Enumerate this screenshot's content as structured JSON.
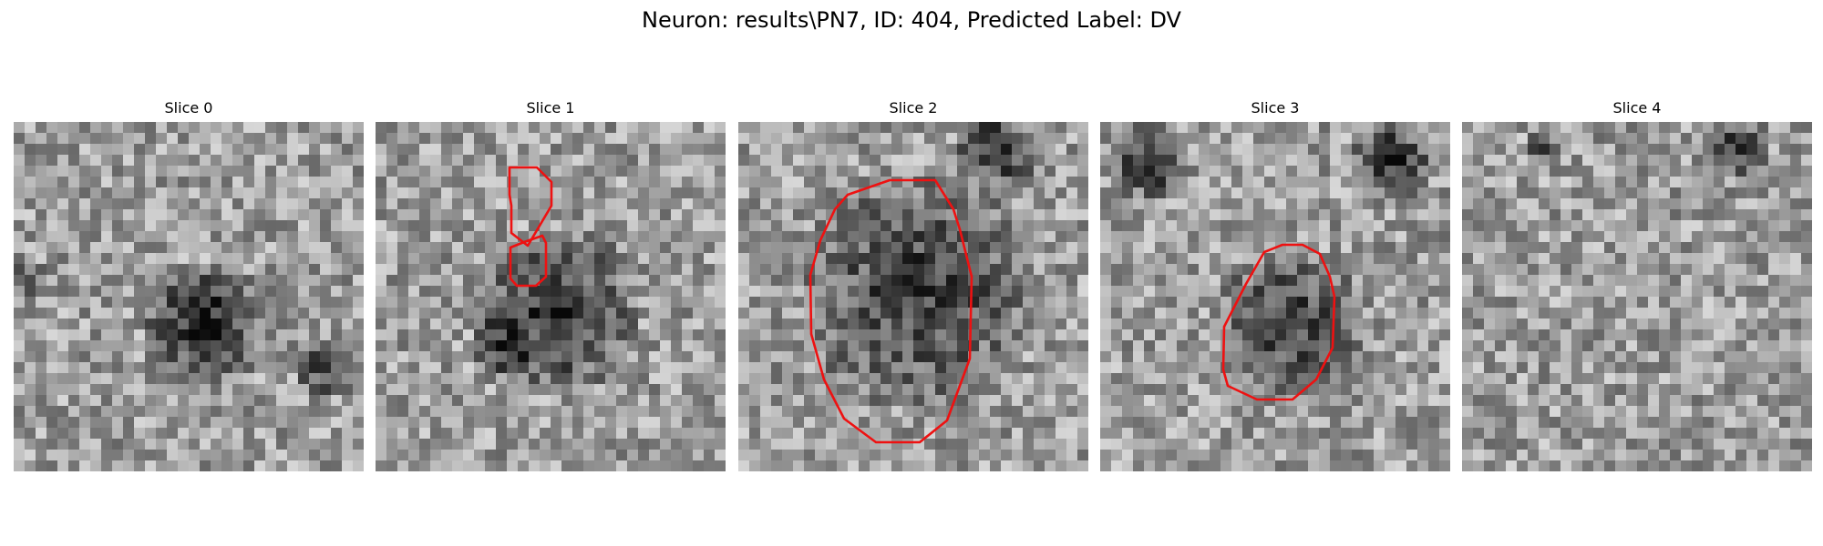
{
  "figure": {
    "title": "Neuron: results\\PN7, ID: 404, Predicted Label: DV",
    "contour_color": "#ee1111"
  },
  "panels": [
    {
      "title": "Slice 0"
    },
    {
      "title": "Slice 1"
    },
    {
      "title": "Slice 2"
    },
    {
      "title": "Slice 3"
    },
    {
      "title": "Slice 4"
    }
  ]
}
